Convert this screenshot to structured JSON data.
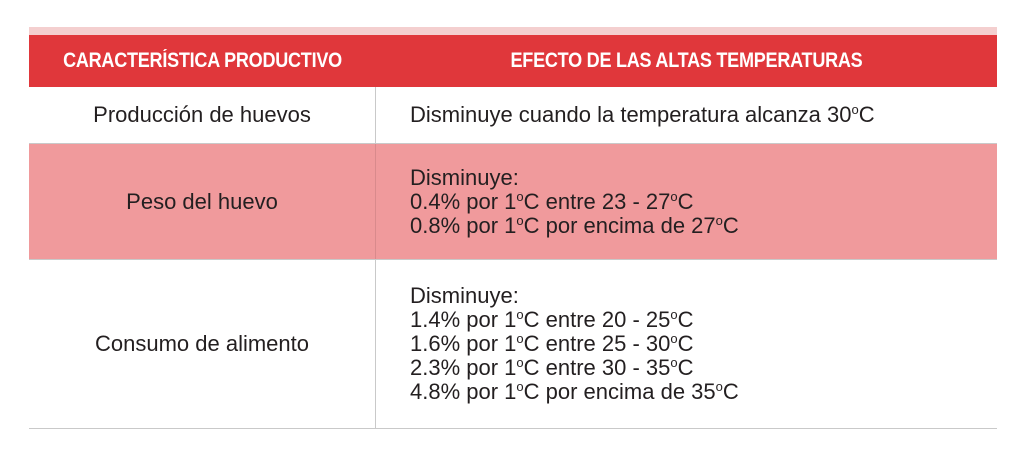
{
  "colors": {
    "header_bg": "#e0373b",
    "highlight_row": "#f09a9c",
    "top_band": "#f4cfcf"
  },
  "table": {
    "headers": [
      "CARACTERÍSTICA PRODUCTIVO",
      "EFECTO DE LAS ALTAS TEMPERATURAS"
    ],
    "rows": [
      {
        "characteristic": "Producción de huevos",
        "effect": [
          "Disminuye cuando la temperatura alcanza 30ºC"
        ]
      },
      {
        "characteristic": "Peso del huevo",
        "effect": [
          "Disminuye:",
          "0.4% por 1ºC entre 23 - 27ºC",
          "0.8% por 1ºC por encima de 27ºC"
        ]
      },
      {
        "characteristic": "Consumo de alimento",
        "effect": [
          "Disminuye:",
          "1.4% por 1ºC entre 20 - 25ºC",
          "1.6% por 1ºC entre 25 - 30ºC",
          "2.3% por 1ºC entre 30 - 35ºC",
          "4.8% por 1ºC por encima de 35ºC"
        ]
      }
    ]
  }
}
